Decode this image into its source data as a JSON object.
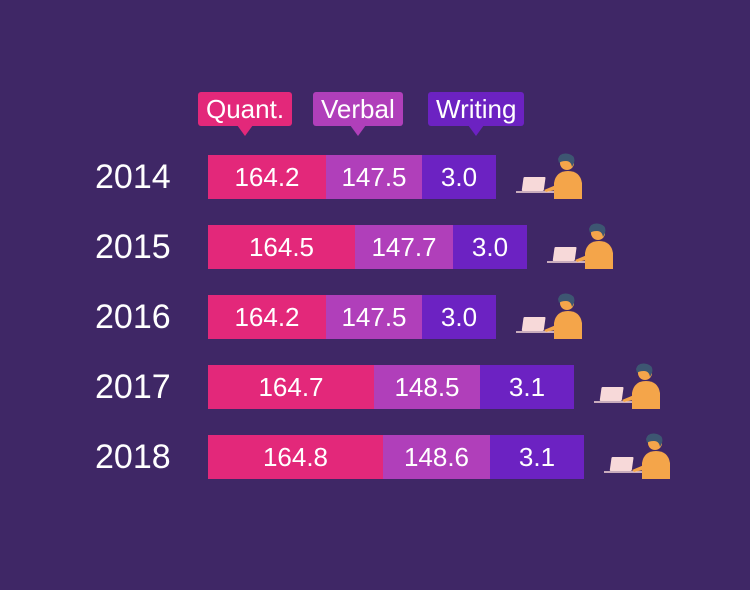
{
  "colors": {
    "background": "#3f2766",
    "quant": "#e3287a",
    "verbal": "#b03fba",
    "writing": "#6c22c2",
    "person_shirt": "#f4a54a",
    "person_hair": "#3d5672",
    "laptop": "#f7d9d9"
  },
  "chart_data": {
    "type": "bar",
    "stacked": true,
    "orientation": "horizontal",
    "categories": [
      "2014",
      "2015",
      "2016",
      "2017",
      "2018"
    ],
    "series": [
      {
        "name": "Quant.",
        "values": [
          164.2,
          164.5,
          164.2,
          164.7,
          164.8
        ],
        "labels": [
          "164.2",
          "164.5",
          "164.2",
          "164.7",
          "164.8"
        ]
      },
      {
        "name": "Verbal",
        "values": [
          147.5,
          147.7,
          147.5,
          148.5,
          148.6
        ],
        "labels": [
          "147.5",
          "147.7",
          "147.5",
          "148.5",
          "148.6"
        ]
      },
      {
        "name": "Writing",
        "values": [
          3.0,
          3.0,
          3.0,
          3.1,
          3.1
        ],
        "labels": [
          "3.0",
          "3.0",
          "3.0",
          "3.1",
          "3.1"
        ]
      }
    ],
    "legend": "top",
    "grid": false,
    "decoration_icon": "person-at-laptop-icon"
  }
}
